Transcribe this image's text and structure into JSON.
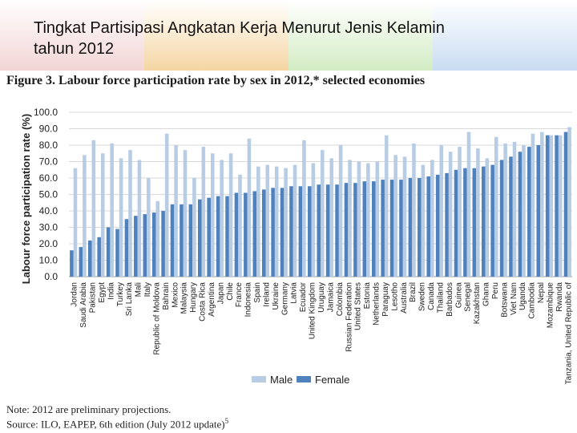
{
  "slide": {
    "title_line1": "Tingkat Partisipasi Angkatan Kerja Menurut Jenis Kelamin",
    "title_line2": "tahun 2012",
    "header_colors": [
      "#f2d5d5",
      "#f5d6a3",
      "#d3ecc4",
      "#c9dcf2"
    ]
  },
  "figure_caption": "Figure 3. Labour force participation rate by sex in 2012,* selected economies",
  "note": "Note: 2012 are preliminary projections.",
  "source": "Source: ILO, EAPEP, 6th edition (July 2012 update)",
  "source_sup": "5",
  "chart_data": {
    "type": "bar",
    "ylabel": "Labour force participation rate (%)",
    "ylim": [
      0,
      100
    ],
    "yticks": [
      "0.0",
      "10.0",
      "20.0",
      "30.0",
      "40.0",
      "50.0",
      "60.0",
      "70.0",
      "80.0",
      "90.0",
      "100.0"
    ],
    "grid": true,
    "legend_position": "bottom",
    "colors": {
      "Male": "#b8cce4",
      "Female": "#4f81bd"
    },
    "categories": [
      "Jordan",
      "Saudi Arabia",
      "Pakistan",
      "Egypt",
      "India",
      "Turkey",
      "Sri Lanka",
      "Mali",
      "Italy",
      "Republic of Moldova",
      "Bahrain",
      "Mexico",
      "Malaysia",
      "Hungary",
      "Costa Rica",
      "Argentina",
      "Japan",
      "Chile",
      "France",
      "Indonesia",
      "Spain",
      "Ireland",
      "Ukraine",
      "Germany",
      "Latvia",
      "Ecuador",
      "United Kingdom",
      "Uruguay",
      "Jamaica",
      "Colombia",
      "Russian Federation",
      "United States",
      "Estonia",
      "Netherlands",
      "Paraguay",
      "Lesotho",
      "Australia",
      "Brazil",
      "Sweden",
      "Canada",
      "Thailand",
      "Barbados",
      "Guinea",
      "Senegal",
      "Kazakhstan",
      "Ghana",
      "Peru",
      "Botswana",
      "Viet Nam",
      "Uganda",
      "Cambodia",
      "Nepal",
      "Mozambique",
      "Rwanda",
      "Tanzania, United Republic of"
    ],
    "series": [
      {
        "name": "Male",
        "values": [
          66,
          74,
          83,
          75,
          81,
          72,
          77,
          71,
          60,
          46,
          87,
          80,
          77,
          60,
          79,
          75,
          71,
          75,
          62,
          84,
          67,
          68,
          67,
          66,
          68,
          83,
          69,
          77,
          72,
          80,
          71,
          70,
          69,
          70,
          86,
          74,
          73,
          81,
          68,
          71,
          80,
          76,
          79,
          88,
          78,
          72,
          85,
          81,
          82,
          80,
          87,
          88,
          86,
          86,
          91
        ]
      },
      {
        "name": "Female",
        "values": [
          16,
          18,
          22,
          24,
          30,
          29,
          35,
          37,
          38,
          39,
          40,
          44,
          44,
          44,
          47,
          48,
          49,
          49,
          51,
          51,
          52,
          53,
          54,
          54,
          55,
          55,
          55,
          56,
          56,
          56,
          57,
          57,
          58,
          58,
          59,
          59,
          59,
          60,
          60,
          61,
          62,
          63,
          65,
          66,
          66,
          67,
          68,
          71,
          73,
          76,
          79,
          80,
          86,
          86,
          88
        ]
      }
    ]
  }
}
